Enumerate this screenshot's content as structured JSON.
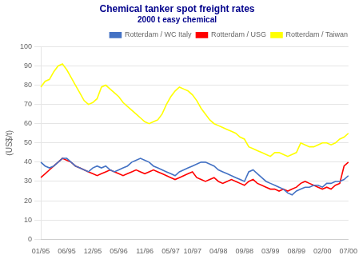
{
  "chart_data": {
    "type": "line",
    "title": "Chemical tanker spot freight rates",
    "subtitle": "2000 t easy chemical",
    "y_label": "(US$/t)",
    "categories": [
      "01/95",
      null,
      null,
      null,
      null,
      null,
      "06/95",
      null,
      null,
      null,
      null,
      null,
      "12/95",
      null,
      null,
      null,
      null,
      null,
      "05/96",
      null,
      null,
      null,
      null,
      null,
      "11/96",
      null,
      null,
      null,
      null,
      null,
      "05/97",
      null,
      null,
      null,
      null,
      "10/97",
      null,
      null,
      null,
      null,
      null,
      "04/98",
      null,
      null,
      null,
      null,
      null,
      "09/98",
      null,
      null,
      null,
      null,
      null,
      "03/99",
      null,
      null,
      null,
      null,
      null,
      "08/99",
      null,
      null,
      null,
      null,
      null,
      "02/00",
      null,
      null,
      null,
      null,
      null,
      "07/00"
    ],
    "series": [
      {
        "name": "Rotterdam / WC Italy",
        "color": "#4472C4",
        "values": [
          40,
          38,
          37,
          38,
          40,
          42,
          42,
          40,
          38,
          37,
          36,
          35,
          37,
          38,
          37,
          38,
          36,
          35,
          36,
          37,
          38,
          40,
          41,
          42,
          41,
          40,
          38,
          37,
          36,
          35,
          34,
          33,
          35,
          36,
          37,
          38,
          39,
          40,
          40,
          39,
          38,
          36,
          35,
          34,
          33,
          32,
          31,
          30,
          35,
          36,
          34,
          32,
          30,
          29,
          28,
          27,
          26,
          24,
          23,
          25,
          26,
          27,
          27,
          28,
          28,
          27,
          29,
          29,
          30,
          30,
          31,
          33
        ]
      },
      {
        "name": "Rotterdam / USG",
        "color": "#FF0000",
        "values": [
          32,
          34,
          36,
          38,
          40,
          42,
          41,
          40,
          38,
          37,
          36,
          35,
          34,
          33,
          34,
          35,
          36,
          35,
          34,
          33,
          34,
          35,
          36,
          35,
          34,
          35,
          36,
          35,
          34,
          33,
          32,
          31,
          32,
          33,
          34,
          35,
          32,
          31,
          30,
          31,
          32,
          30,
          29,
          30,
          31,
          30,
          29,
          28,
          30,
          31,
          29,
          28,
          27,
          26,
          26,
          25,
          26,
          25,
          26,
          27,
          29,
          30,
          29,
          28,
          27,
          26,
          27,
          26,
          28,
          29,
          38,
          40
        ]
      },
      {
        "name": "Rotterdam / Taiwan",
        "color": "#FFFF00",
        "values": [
          79,
          82,
          83,
          87,
          90,
          91,
          88,
          84,
          80,
          76,
          72,
          70,
          71,
          73,
          79,
          80,
          78,
          76,
          74,
          71,
          69,
          67,
          65,
          63,
          61,
          60,
          61,
          62,
          65,
          70,
          74,
          77,
          79,
          78,
          77,
          75,
          72,
          68,
          65,
          62,
          60,
          59,
          58,
          57,
          56,
          55,
          53,
          52,
          48,
          47,
          46,
          45,
          44,
          43,
          45,
          45,
          44,
          43,
          44,
          45,
          50,
          49,
          48,
          48,
          49,
          50,
          50,
          49,
          50,
          52,
          53,
          55
        ]
      }
    ],
    "ylim": [
      0,
      100
    ],
    "yticks": [
      0,
      10,
      20,
      30,
      40,
      50,
      60,
      70,
      80,
      90,
      100
    ],
    "grid": true,
    "legend": "upper right"
  }
}
